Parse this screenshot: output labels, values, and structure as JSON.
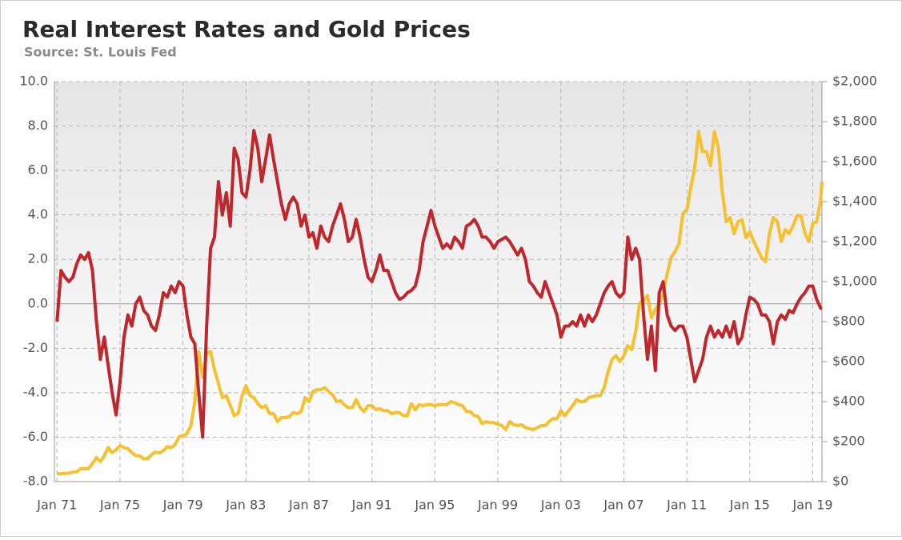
{
  "chart_data": {
    "type": "line",
    "title": "Real Interest Rates and Gold Prices",
    "subtitle": "Source: St. Louis Fed",
    "grid": true,
    "xlim": [
      "1970-11",
      "2019-08"
    ],
    "xticks": [
      {
        "value": "1971-01",
        "label": "Jan 71"
      },
      {
        "value": "1975-01",
        "label": "Jan 75"
      },
      {
        "value": "1979-01",
        "label": "Jan 79"
      },
      {
        "value": "1983-01",
        "label": "Jan 83"
      },
      {
        "value": "1987-01",
        "label": "Jan 87"
      },
      {
        "value": "1991-01",
        "label": "Jan 91"
      },
      {
        "value": "1995-01",
        "label": "Jan 95"
      },
      {
        "value": "1999-01",
        "label": "Jan 99"
      },
      {
        "value": "2003-01",
        "label": "Jan 03"
      },
      {
        "value": "2007-01",
        "label": "Jan 07"
      },
      {
        "value": "2011-01",
        "label": "Jan 11"
      },
      {
        "value": "2015-01",
        "label": "Jan 15"
      },
      {
        "value": "2019-01",
        "label": "Jan 19"
      }
    ],
    "ylim": [
      -8,
      10
    ],
    "yticks": [
      {
        "value": -8,
        "label": "-8.0"
      },
      {
        "value": -6,
        "label": "-6.0"
      },
      {
        "value": -4,
        "label": "-4.0"
      },
      {
        "value": -2,
        "label": "-2.0"
      },
      {
        "value": 0,
        "label": "0.0"
      },
      {
        "value": 2,
        "label": "2.0"
      },
      {
        "value": 4,
        "label": "4.0"
      },
      {
        "value": 6,
        "label": "6.0"
      },
      {
        "value": 8,
        "label": "8.0"
      },
      {
        "value": 10,
        "label": "10.0"
      }
    ],
    "y2lim": [
      0,
      2000
    ],
    "y2ticks": [
      {
        "value": 0,
        "label": "$0"
      },
      {
        "value": 200,
        "label": "$200"
      },
      {
        "value": 400,
        "label": "$400"
      },
      {
        "value": 600,
        "label": "$600"
      },
      {
        "value": 800,
        "label": "$800"
      },
      {
        "value": 1000,
        "label": "$1,000"
      },
      {
        "value": 1200,
        "label": "$1,200"
      },
      {
        "value": 1400,
        "label": "$1,400"
      },
      {
        "value": 1600,
        "label": "$1,600"
      },
      {
        "value": 1800,
        "label": "$1,800"
      },
      {
        "value": 2000,
        "label": "$2,000"
      }
    ],
    "x": [
      "1971-01",
      "1971-04",
      "1971-07",
      "1971-10",
      "1972-01",
      "1972-04",
      "1972-07",
      "1972-10",
      "1973-01",
      "1973-04",
      "1973-07",
      "1973-10",
      "1974-01",
      "1974-04",
      "1974-07",
      "1974-10",
      "1975-01",
      "1975-04",
      "1975-07",
      "1975-10",
      "1976-01",
      "1976-04",
      "1976-07",
      "1976-10",
      "1977-01",
      "1977-04",
      "1977-07",
      "1977-10",
      "1978-01",
      "1978-04",
      "1978-07",
      "1978-10",
      "1979-01",
      "1979-04",
      "1979-07",
      "1979-10",
      "1980-01",
      "1980-04",
      "1980-07",
      "1980-10",
      "1981-01",
      "1981-04",
      "1981-07",
      "1981-10",
      "1982-01",
      "1982-04",
      "1982-07",
      "1982-10",
      "1983-01",
      "1983-04",
      "1983-07",
      "1983-10",
      "1984-01",
      "1984-04",
      "1984-07",
      "1984-10",
      "1985-01",
      "1985-04",
      "1985-07",
      "1985-10",
      "1986-01",
      "1986-04",
      "1986-07",
      "1986-10",
      "1987-01",
      "1987-04",
      "1987-07",
      "1987-10",
      "1988-01",
      "1988-04",
      "1988-07",
      "1988-10",
      "1989-01",
      "1989-04",
      "1989-07",
      "1989-10",
      "1990-01",
      "1990-04",
      "1990-07",
      "1990-10",
      "1991-01",
      "1991-04",
      "1991-07",
      "1991-10",
      "1992-01",
      "1992-04",
      "1992-07",
      "1992-10",
      "1993-01",
      "1993-04",
      "1993-07",
      "1993-10",
      "1994-01",
      "1994-04",
      "1994-07",
      "1994-10",
      "1995-01",
      "1995-04",
      "1995-07",
      "1995-10",
      "1996-01",
      "1996-04",
      "1996-07",
      "1996-10",
      "1997-01",
      "1997-04",
      "1997-07",
      "1997-10",
      "1998-01",
      "1998-04",
      "1998-07",
      "1998-10",
      "1999-01",
      "1999-04",
      "1999-07",
      "1999-10",
      "2000-01",
      "2000-04",
      "2000-07",
      "2000-10",
      "2001-01",
      "2001-04",
      "2001-07",
      "2001-10",
      "2002-01",
      "2002-04",
      "2002-07",
      "2002-10",
      "2003-01",
      "2003-04",
      "2003-07",
      "2003-10",
      "2004-01",
      "2004-04",
      "2004-07",
      "2004-10",
      "2005-01",
      "2005-04",
      "2005-07",
      "2005-10",
      "2006-01",
      "2006-04",
      "2006-07",
      "2006-10",
      "2007-01",
      "2007-04",
      "2007-07",
      "2007-10",
      "2008-01",
      "2008-04",
      "2008-07",
      "2008-10",
      "2009-01",
      "2009-04",
      "2009-07",
      "2009-10",
      "2010-01",
      "2010-04",
      "2010-07",
      "2010-10",
      "2011-01",
      "2011-04",
      "2011-07",
      "2011-10",
      "2012-01",
      "2012-04",
      "2012-07",
      "2012-10",
      "2013-01",
      "2013-04",
      "2013-07",
      "2013-10",
      "2014-01",
      "2014-04",
      "2014-07",
      "2014-10",
      "2015-01",
      "2015-04",
      "2015-07",
      "2015-10",
      "2016-01",
      "2016-04",
      "2016-07",
      "2016-10",
      "2017-01",
      "2017-04",
      "2017-07",
      "2017-10",
      "2018-01",
      "2018-04",
      "2018-07",
      "2018-10",
      "2019-01",
      "2019-04",
      "2019-07",
      "2019-08"
    ],
    "series": [
      {
        "color": "#f5c12e",
        "axis": "y2",
        "values": [
          38,
          40,
          41,
          42,
          48,
          49,
          65,
          64,
          65,
          90,
          120,
          100,
          130,
          170,
          145,
          160,
          180,
          170,
          165,
          145,
          130,
          128,
          115,
          115,
          135,
          148,
          143,
          155,
          175,
          170,
          185,
          225,
          230,
          240,
          280,
          400,
          650,
          520,
          640,
          650,
          560,
          490,
          420,
          430,
          380,
          330,
          340,
          430,
          480,
          430,
          420,
          390,
          370,
          380,
          340,
          340,
          300,
          320,
          320,
          325,
          345,
          340,
          350,
          420,
          400,
          450,
          460,
          460,
          470,
          450,
          435,
          400,
          405,
          385,
          370,
          370,
          410,
          370,
          350,
          380,
          380,
          360,
          365,
          355,
          355,
          340,
          345,
          345,
          330,
          330,
          390,
          360,
          385,
          380,
          385,
          385,
          380,
          385,
          385,
          385,
          400,
          395,
          385,
          380,
          350,
          350,
          330,
          325,
          290,
          300,
          295,
          295,
          287,
          280,
          260,
          300,
          285,
          280,
          285,
          270,
          265,
          260,
          270,
          280,
          280,
          300,
          315,
          315,
          355,
          330,
          355,
          380,
          410,
          400,
          400,
          420,
          425,
          430,
          430,
          470,
          550,
          610,
          630,
          600,
          630,
          680,
          660,
          750,
          890,
          910,
          930,
          820,
          860,
          890,
          940,
          1040,
          1120,
          1150,
          1190,
          1340,
          1360,
          1470,
          1570,
          1750,
          1650,
          1650,
          1580,
          1750,
          1670,
          1450,
          1300,
          1320,
          1240,
          1300,
          1310,
          1220,
          1250,
          1200,
          1160,
          1120,
          1100,
          1240,
          1320,
          1300,
          1200,
          1260,
          1240,
          1280,
          1330,
          1330,
          1240,
          1200,
          1290,
          1300,
          1410,
          1500
        ]
      },
      {
        "color": "#c0272d",
        "axis": "y",
        "values": [
          -0.8,
          1.5,
          1.2,
          1.0,
          1.2,
          1.8,
          2.2,
          2.0,
          2.3,
          1.5,
          -0.8,
          -2.5,
          -1.5,
          -2.8,
          -4.0,
          -5.0,
          -3.5,
          -1.5,
          -0.5,
          -1.0,
          0.0,
          0.3,
          -0.3,
          -0.5,
          -1.0,
          -1.2,
          -0.5,
          0.5,
          0.3,
          0.8,
          0.5,
          1.0,
          0.8,
          -0.5,
          -1.5,
          -1.8,
          -4.0,
          -6.0,
          -1.0,
          2.5,
          3.0,
          5.5,
          4.0,
          5.0,
          3.5,
          7.0,
          6.5,
          5.0,
          4.8,
          6.0,
          7.8,
          7.0,
          5.5,
          6.5,
          7.6,
          6.5,
          5.5,
          4.5,
          3.8,
          4.5,
          4.8,
          4.5,
          3.5,
          4.0,
          3.0,
          3.2,
          2.5,
          3.5,
          3.0,
          2.8,
          3.5,
          4.0,
          4.5,
          3.8,
          2.8,
          3.0,
          3.8,
          3.0,
          2.0,
          1.2,
          1.0,
          1.5,
          2.2,
          1.5,
          1.5,
          1.0,
          0.5,
          0.2,
          0.3,
          0.5,
          0.6,
          0.8,
          1.5,
          2.8,
          3.5,
          4.2,
          3.5,
          3.0,
          2.5,
          2.7,
          2.5,
          3.0,
          2.8,
          2.5,
          3.5,
          3.6,
          3.8,
          3.5,
          3.0,
          3.0,
          2.8,
          2.5,
          2.8,
          2.9,
          3.0,
          2.8,
          2.5,
          2.2,
          2.5,
          2.0,
          1.0,
          0.8,
          0.5,
          0.3,
          1.0,
          0.5,
          0.0,
          -0.5,
          -1.5,
          -1.0,
          -1.0,
          -0.8,
          -1.0,
          -0.5,
          -1.0,
          -0.5,
          -0.8,
          -0.5,
          0.0,
          0.5,
          0.8,
          1.0,
          0.5,
          0.3,
          0.5,
          3.0,
          2.0,
          2.5,
          2.0,
          -0.5,
          -2.5,
          -1.0,
          -3.0,
          0.5,
          1.0,
          -0.5,
          -1.0,
          -1.2,
          -1.0,
          -1.0,
          -1.5,
          -2.5,
          -3.5,
          -3.0,
          -2.5,
          -1.5,
          -1.0,
          -1.5,
          -1.2,
          -1.5,
          -1.0,
          -1.5,
          -0.8,
          -1.8,
          -1.5,
          -0.5,
          0.3,
          0.2,
          0.0,
          -0.5,
          -0.5,
          -0.8,
          -1.8,
          -0.8,
          -0.5,
          -0.7,
          -0.3,
          -0.4,
          0.0,
          0.3,
          0.5,
          0.8,
          0.8,
          0.2,
          -0.2,
          -0.2
        ]
      }
    ]
  }
}
